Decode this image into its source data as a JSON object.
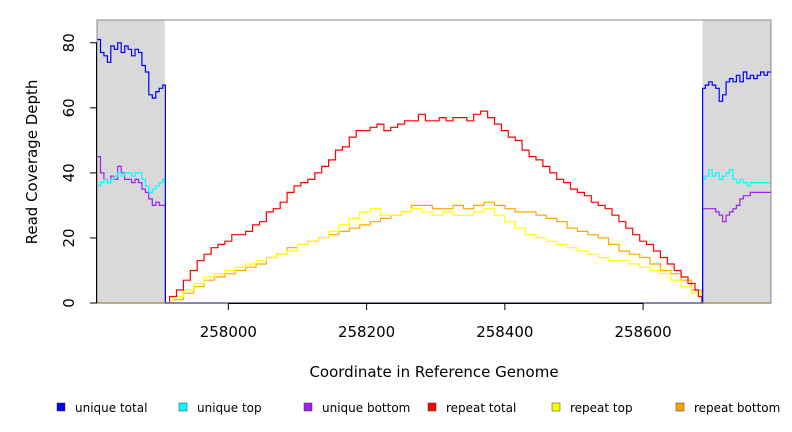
{
  "chart_data": {
    "type": "line",
    "title": "",
    "xlabel": "Coordinate in Reference Genome",
    "ylabel": "Read Coverage Depth",
    "xlim": [
      257810,
      258785
    ],
    "ylim": [
      0,
      87
    ],
    "x_ticks": [
      258000,
      258200,
      258400,
      258600
    ],
    "y_ticks": [
      0,
      20,
      40,
      60,
      80
    ],
    "shaded_regions": [
      {
        "x": [
          257810,
          257908
        ],
        "color": "#d9d9d9"
      },
      {
        "x": [
          258686,
          258785
        ],
        "color": "#d9d9d9"
      }
    ],
    "grid": false,
    "legend_position": "bottom",
    "series": [
      {
        "name": "unique total",
        "color": "#0000ff",
        "x": [
          257810,
          257815,
          257820,
          257825,
          257830,
          257835,
          257840,
          257845,
          257850,
          257855,
          257860,
          257865,
          257870,
          257875,
          257880,
          257885,
          257890,
          257895,
          257900,
          257905,
          257908,
          257909,
          258000,
          258200,
          258400,
          258600,
          258685,
          258686,
          258690,
          258695,
          258700,
          258705,
          258710,
          258715,
          258720,
          258725,
          258730,
          258735,
          258740,
          258745,
          258750,
          258755,
          258760,
          258765,
          258770,
          258775,
          258780,
          258785
        ],
        "y": [
          81,
          77,
          76,
          74,
          79,
          78,
          80,
          77,
          79,
          78,
          76,
          78,
          77,
          73,
          71,
          64,
          63,
          65,
          66,
          67,
          67,
          0,
          0,
          0,
          0,
          0,
          0,
          66,
          67,
          68,
          67,
          66,
          62,
          64,
          68,
          69,
          68,
          70,
          68,
          71,
          69,
          70,
          69,
          70,
          71,
          70,
          71,
          71
        ]
      },
      {
        "name": "unique top",
        "color": "#00ffff",
        "x": [
          257810,
          257815,
          257820,
          257825,
          257830,
          257835,
          257840,
          257845,
          257850,
          257855,
          257860,
          257865,
          257870,
          257875,
          257880,
          257885,
          257890,
          257895,
          257900,
          257905,
          257908,
          257909,
          258685,
          258686,
          258690,
          258695,
          258700,
          258705,
          258710,
          258715,
          258720,
          258725,
          258730,
          258735,
          258740,
          258745,
          258750,
          258755,
          258760,
          258765,
          258770,
          258775,
          258780,
          258785
        ],
        "y": [
          36,
          37,
          38,
          37,
          38,
          39,
          40,
          39,
          40,
          40,
          39,
          40,
          40,
          38,
          36,
          34,
          35,
          36,
          37,
          38,
          37,
          0,
          0,
          38,
          39,
          41,
          39,
          40,
          38,
          39,
          40,
          41,
          38,
          37,
          38,
          37,
          36,
          37,
          37,
          37,
          37,
          37,
          37,
          37
        ]
      },
      {
        "name": "unique bottom",
        "color": "#a020f0",
        "x": [
          257810,
          257815,
          257820,
          257825,
          257830,
          257835,
          257840,
          257845,
          257850,
          257855,
          257860,
          257865,
          257870,
          257875,
          257880,
          257885,
          257890,
          257895,
          257900,
          257905,
          257908,
          257909,
          258685,
          258686,
          258690,
          258695,
          258700,
          258705,
          258710,
          258715,
          258720,
          258725,
          258730,
          258735,
          258740,
          258745,
          258750,
          258755,
          258760,
          258765,
          258770,
          258775,
          258780,
          258785
        ],
        "y": [
          45,
          40,
          38,
          37,
          39,
          38,
          42,
          40,
          38,
          38,
          37,
          38,
          37,
          35,
          34,
          32,
          30,
          31,
          30,
          30,
          30,
          0,
          0,
          29,
          29,
          29,
          29,
          28,
          27,
          25,
          27,
          28,
          29,
          30,
          32,
          33,
          33,
          34,
          34,
          34,
          34,
          34,
          34,
          34
        ]
      },
      {
        "name": "repeat total",
        "color": "#ff0000",
        "x": [
          257908,
          257915,
          257925,
          257935,
          257945,
          257955,
          257965,
          257975,
          257985,
          257995,
          258005,
          258015,
          258025,
          258035,
          258045,
          258055,
          258065,
          258075,
          258085,
          258095,
          258105,
          258115,
          258125,
          258135,
          258145,
          258155,
          258165,
          258175,
          258185,
          258195,
          258205,
          258215,
          258225,
          258235,
          258245,
          258255,
          258265,
          258275,
          258285,
          258295,
          258305,
          258315,
          258325,
          258335,
          258345,
          258355,
          258365,
          258375,
          258385,
          258395,
          258405,
          258415,
          258425,
          258435,
          258445,
          258455,
          258465,
          258475,
          258485,
          258495,
          258505,
          258515,
          258525,
          258535,
          258545,
          258555,
          258565,
          258575,
          258585,
          258595,
          258605,
          258615,
          258625,
          258635,
          258645,
          258655,
          258665,
          258675,
          258680,
          258685
        ],
        "y": [
          0,
          2,
          4,
          7,
          10,
          13,
          15,
          17,
          18,
          19,
          21,
          21,
          22,
          24,
          25,
          28,
          29,
          31,
          34,
          36,
          37,
          38,
          40,
          42,
          44,
          47,
          48,
          51,
          53,
          53,
          54,
          55,
          53,
          54,
          55,
          56,
          56,
          58,
          56,
          56,
          57,
          56,
          57,
          57,
          56,
          58,
          59,
          57,
          55,
          53,
          51,
          50,
          47,
          45,
          44,
          42,
          40,
          38,
          37,
          35,
          34,
          33,
          31,
          30,
          29,
          27,
          25,
          23,
          21,
          19,
          18,
          16,
          14,
          12,
          10,
          8,
          6,
          4,
          2,
          0
        ]
      },
      {
        "name": "repeat top",
        "color": "#ffff00",
        "x": [
          257908,
          257920,
          257935,
          257950,
          257965,
          257980,
          257995,
          258010,
          258025,
          258040,
          258055,
          258070,
          258085,
          258100,
          258115,
          258130,
          258145,
          258160,
          258175,
          258190,
          258205,
          258220,
          258235,
          258250,
          258265,
          258280,
          258295,
          258310,
          258325,
          258340,
          258355,
          258370,
          258385,
          258400,
          258415,
          258430,
          258445,
          258460,
          258475,
          258490,
          258505,
          258520,
          258535,
          258550,
          258565,
          258580,
          258595,
          258610,
          258625,
          258640,
          258655,
          258670,
          258685
        ],
        "y": [
          0,
          2,
          4,
          6,
          8,
          9,
          10,
          11,
          12,
          13,
          14,
          15,
          16,
          18,
          19,
          20,
          22,
          24,
          26,
          28,
          29,
          27,
          27,
          28,
          29,
          28,
          27,
          28,
          27,
          27,
          28,
          29,
          27,
          25,
          23,
          21,
          20,
          19,
          18,
          17,
          16,
          15,
          14,
          13,
          13,
          12,
          11,
          10,
          9,
          7,
          5,
          3,
          0
        ]
      },
      {
        "name": "repeat bottom",
        "color": "#ffa500",
        "x": [
          257908,
          257920,
          257935,
          257950,
          257965,
          257980,
          257995,
          258010,
          258025,
          258040,
          258055,
          258070,
          258085,
          258100,
          258115,
          258130,
          258145,
          258160,
          258175,
          258190,
          258205,
          258220,
          258235,
          258250,
          258265,
          258280,
          258295,
          258310,
          258325,
          258340,
          258355,
          258370,
          258385,
          258400,
          258415,
          258430,
          258445,
          258460,
          258475,
          258490,
          258505,
          258520,
          258535,
          258550,
          258565,
          258580,
          258595,
          258610,
          258625,
          258640,
          258655,
          258670,
          258685
        ],
        "y": [
          0,
          1,
          3,
          5,
          7,
          8,
          9,
          10,
          11,
          12,
          14,
          15,
          17,
          18,
          19,
          20,
          21,
          22,
          23,
          24,
          25,
          26,
          27,
          28,
          30,
          30,
          29,
          29,
          30,
          29,
          30,
          31,
          30,
          29,
          28,
          28,
          27,
          26,
          25,
          23,
          22,
          21,
          20,
          18,
          16,
          15,
          14,
          12,
          10,
          9,
          7,
          4,
          0
        ]
      }
    ],
    "baseline": {
      "name": "zero line",
      "color": "#ffa500",
      "y": 0
    }
  }
}
